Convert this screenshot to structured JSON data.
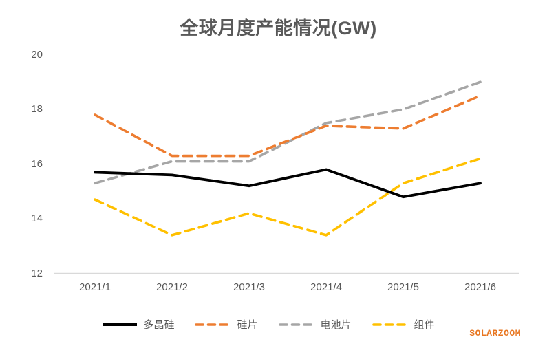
{
  "title": "全球月度产能情况(GW)",
  "watermark": "SOLARZOOM",
  "colors": {
    "title_text": "#595959",
    "axis_text": "#595959",
    "axis_line": "#D9D9D9",
    "watermark": "#E87722"
  },
  "chart_data": {
    "type": "line",
    "title": "全球月度产能情况(GW)",
    "xlabel": "",
    "ylabel": "",
    "grid": false,
    "legend_position": "bottom",
    "ylim": [
      12,
      20
    ],
    "y_ticks": [
      20,
      18,
      16,
      14,
      12
    ],
    "categories": [
      "2021/1",
      "2021/2",
      "2021/3",
      "2021/4",
      "2021/5",
      "2021/6"
    ],
    "series": [
      {
        "name": "多晶硅",
        "color": "#000000",
        "line_style": "solid",
        "values": [
          15.7,
          15.6,
          15.2,
          15.8,
          14.8,
          15.3
        ]
      },
      {
        "name": "硅片",
        "color": "#ED7D31",
        "line_style": "dashed",
        "values": [
          17.8,
          16.3,
          16.3,
          17.4,
          17.3,
          18.5
        ]
      },
      {
        "name": "电池片",
        "color": "#A6A6A6",
        "line_style": "dashed",
        "values": [
          15.3,
          16.1,
          16.1,
          17.5,
          18.0,
          19.0
        ]
      },
      {
        "name": "组件",
        "color": "#FFC000",
        "line_style": "dashed",
        "values": [
          14.7,
          13.4,
          14.2,
          13.4,
          15.3,
          16.2
        ]
      }
    ]
  }
}
